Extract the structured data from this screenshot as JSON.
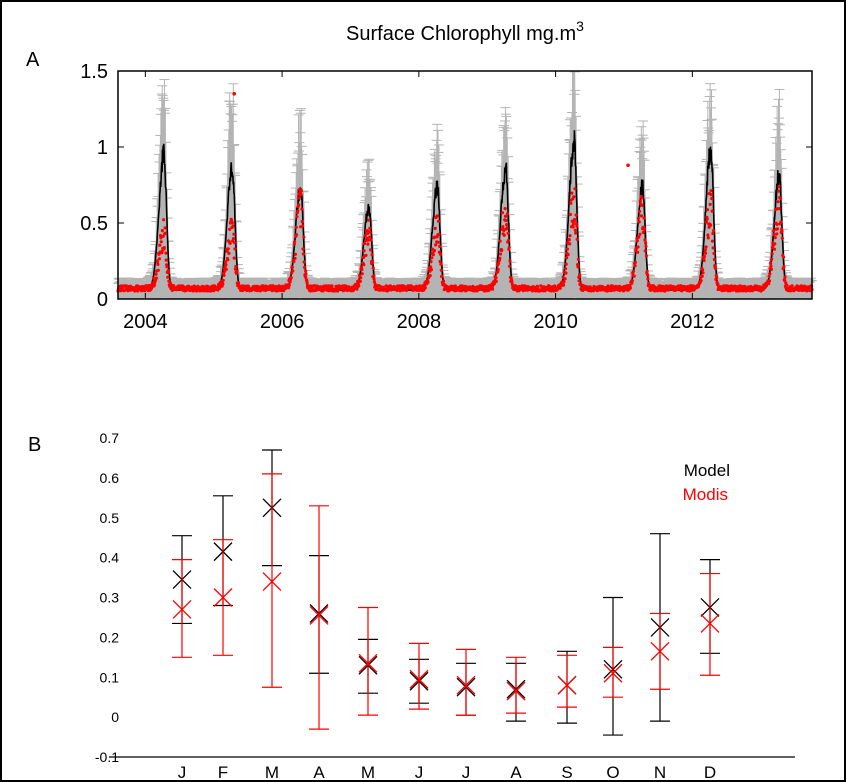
{
  "colors": {
    "model": "#000000",
    "modis": "#ff0000",
    "spread": "#b4b4b4",
    "frame": "#000000"
  },
  "chart_data": [
    {
      "panel": "A",
      "type": "line",
      "title": "Surface Chlorophyll mg.m",
      "title_superscript": "3",
      "xlim": [
        2003.6,
        2013.75
      ],
      "ylim": [
        0,
        1.5
      ],
      "xticks": [
        2004,
        2006,
        2008,
        2010,
        2012
      ],
      "yticks": [
        0,
        0.5,
        1,
        1.5
      ],
      "ytick_labels": [
        "0",
        "0.5",
        "1",
        "1.5"
      ],
      "annual_bloom": [
        {
          "year": 2004,
          "model_peak": 0.95,
          "modis_peak": 0.42,
          "spread_max": 1.32
        },
        {
          "year": 2005,
          "model_peak": 0.87,
          "modis_peak": 0.44,
          "spread_max": 1.35
        },
        {
          "year": 2006,
          "model_peak": 0.73,
          "modis_peak": 0.6,
          "spread_max": 1.15
        },
        {
          "year": 2007,
          "model_peak": 0.61,
          "modis_peak": 0.42,
          "spread_max": 0.86
        },
        {
          "year": 2008,
          "model_peak": 0.73,
          "modis_peak": 0.46,
          "spread_max": 1.05
        },
        {
          "year": 2009,
          "model_peak": 0.86,
          "modis_peak": 0.57,
          "spread_max": 1.21
        },
        {
          "year": 2010,
          "model_peak": 1.03,
          "modis_peak": 0.62,
          "spread_max": 1.5
        },
        {
          "year": 2011,
          "model_peak": 0.74,
          "modis_peak": 0.58,
          "spread_max": 1.05
        },
        {
          "year": 2012,
          "model_peak": 0.98,
          "modis_peak": 0.59,
          "spread_max": 1.34
        },
        {
          "year": 2013,
          "model_peak": 0.81,
          "modis_peak": 0.64,
          "spread_max": 1.25
        }
      ],
      "winter_baseline": {
        "model": 0.06,
        "modis": 0.07
      },
      "outliers": [
        {
          "x": 2005.3,
          "y": 1.35
        },
        {
          "x": 2011.06,
          "y": 0.88
        }
      ]
    },
    {
      "panel": "B",
      "type": "scatter",
      "categories": [
        "J",
        "F",
        "M",
        "A",
        "M",
        "J",
        "J",
        "A",
        "S",
        "O",
        "N",
        "D"
      ],
      "ylim": [
        -0.1,
        0.7
      ],
      "yticks": [
        -0.1,
        0,
        0.1,
        0.2,
        0.3,
        0.4,
        0.5,
        0.6,
        0.7
      ],
      "ytick_labels": [
        "-0.1",
        "0",
        "0.1",
        "0.2",
        "0.3",
        "0.4",
        "0.5",
        "0.6",
        "0.7"
      ],
      "legend_position": "top-right",
      "series": [
        {
          "name": "Model",
          "values": [
            0.345,
            0.415,
            0.525,
            0.26,
            0.13,
            0.09,
            0.075,
            0.07,
            0.08,
            0.12,
            0.225,
            0.275
          ],
          "low": [
            0.235,
            0.28,
            0.38,
            0.11,
            0.06,
            0.035,
            0.005,
            -0.01,
            -0.015,
            -0.045,
            -0.01,
            0.16
          ],
          "high": [
            0.455,
            0.555,
            0.67,
            0.405,
            0.195,
            0.145,
            0.135,
            0.135,
            0.165,
            0.3,
            0.46,
            0.395
          ]
        },
        {
          "name": "Modis",
          "values": [
            0.27,
            0.3,
            0.34,
            0.255,
            0.135,
            0.095,
            0.08,
            0.065,
            0.08,
            0.11,
            0.165,
            0.235
          ],
          "low": [
            0.15,
            0.155,
            0.075,
            -0.03,
            0.005,
            0.02,
            0.005,
            0.01,
            0.025,
            0.05,
            0.07,
            0.105
          ],
          "high": [
            0.395,
            0.445,
            0.61,
            0.53,
            0.275,
            0.185,
            0.17,
            0.15,
            0.155,
            0.175,
            0.26,
            0.36
          ]
        }
      ]
    }
  ],
  "panels": {
    "a_label": "A",
    "b_label": "B"
  }
}
